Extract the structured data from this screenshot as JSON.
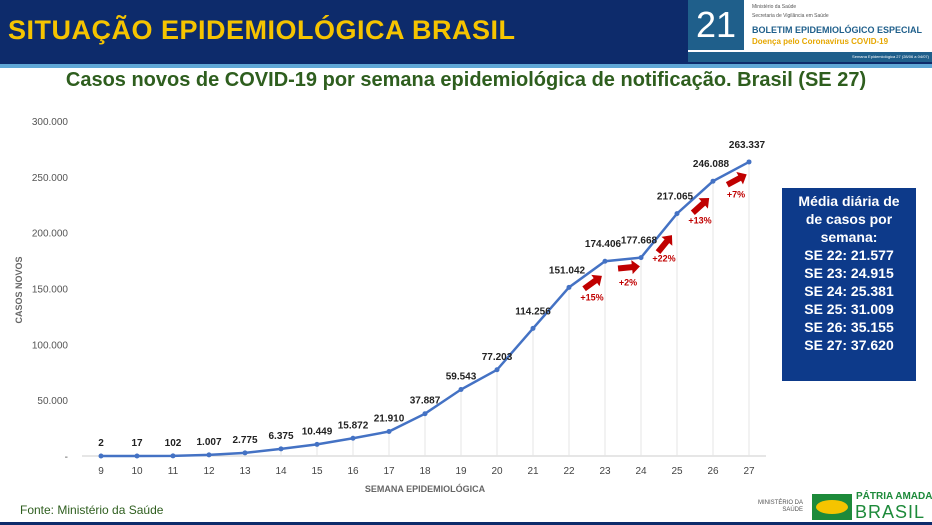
{
  "header": {
    "title": "SITUAÇÃO EPIDEMIOLÓGICA BRASIL",
    "number": "21",
    "ministry": "Ministério da Saúde",
    "secretariat": "Secretaria de Vigilância em Saúde",
    "bulletin": "BOLETIM EPIDEMIOLÓGICO ESPECIAL",
    "disease": "Doença pelo Coronavírus COVID-19",
    "week": "Semana Epidemiológica 27 (28/06 a 04/07)"
  },
  "chart_data": {
    "type": "line",
    "title": "Casos novos de COVID-19 por semana epidemiológica de notificação. Brasil (SE 27)",
    "xlabel": "SEMANA EPIDEMIOLÓGICA",
    "ylabel": "CASOS NOVOS",
    "ylim": [
      0,
      300000
    ],
    "yticks": [
      "-",
      "50.000",
      "100.000",
      "150.000",
      "200.000",
      "250.000",
      "300.000"
    ],
    "categories": [
      "9",
      "10",
      "11",
      "12",
      "13",
      "14",
      "15",
      "16",
      "17",
      "18",
      "19",
      "20",
      "21",
      "22",
      "23",
      "24",
      "25",
      "26",
      "27"
    ],
    "values": [
      2,
      17,
      102,
      1007,
      2775,
      6375,
      10449,
      15872,
      21910,
      37887,
      59543,
      77203,
      114256,
      151042,
      174406,
      177668,
      217065,
      246088,
      263337
    ],
    "labels": [
      "2",
      "17",
      "102",
      "1.007",
      "2.775",
      "6.375",
      "10.449",
      "15.872",
      "21.910",
      "37.887",
      "59.543",
      "77.203",
      "114.256",
      "151.042",
      "174.406",
      "177.668",
      "217.065",
      "246.088",
      "263.337"
    ],
    "annotations": [
      {
        "from": "22",
        "to": "23",
        "text": "+15%"
      },
      {
        "from": "23",
        "to": "24",
        "text": "+2%"
      },
      {
        "from": "24",
        "to": "25",
        "text": "+22%"
      },
      {
        "from": "25",
        "to": "26",
        "text": "+13%"
      },
      {
        "from": "26",
        "to": "27",
        "text": "+7%"
      }
    ],
    "line_color": "#4472c4",
    "arrow_color": "#c00000",
    "grid": "vertical"
  },
  "media": {
    "title_lines": [
      "Média diária de",
      "de casos por",
      "semana:"
    ],
    "items": [
      "SE 22: 21.577",
      "SE 23: 24.915",
      "SE 24: 25.381",
      "SE 25: 31.009",
      "SE 26: 35.155",
      "SE 27: 37.620"
    ]
  },
  "footer": {
    "source": "Fonte: Ministério da Saúde",
    "ministry": "MINISTÉRIO DA SAÚDE",
    "slogan": "PÁTRIA AMADA",
    "brasil": "BRASIL"
  }
}
